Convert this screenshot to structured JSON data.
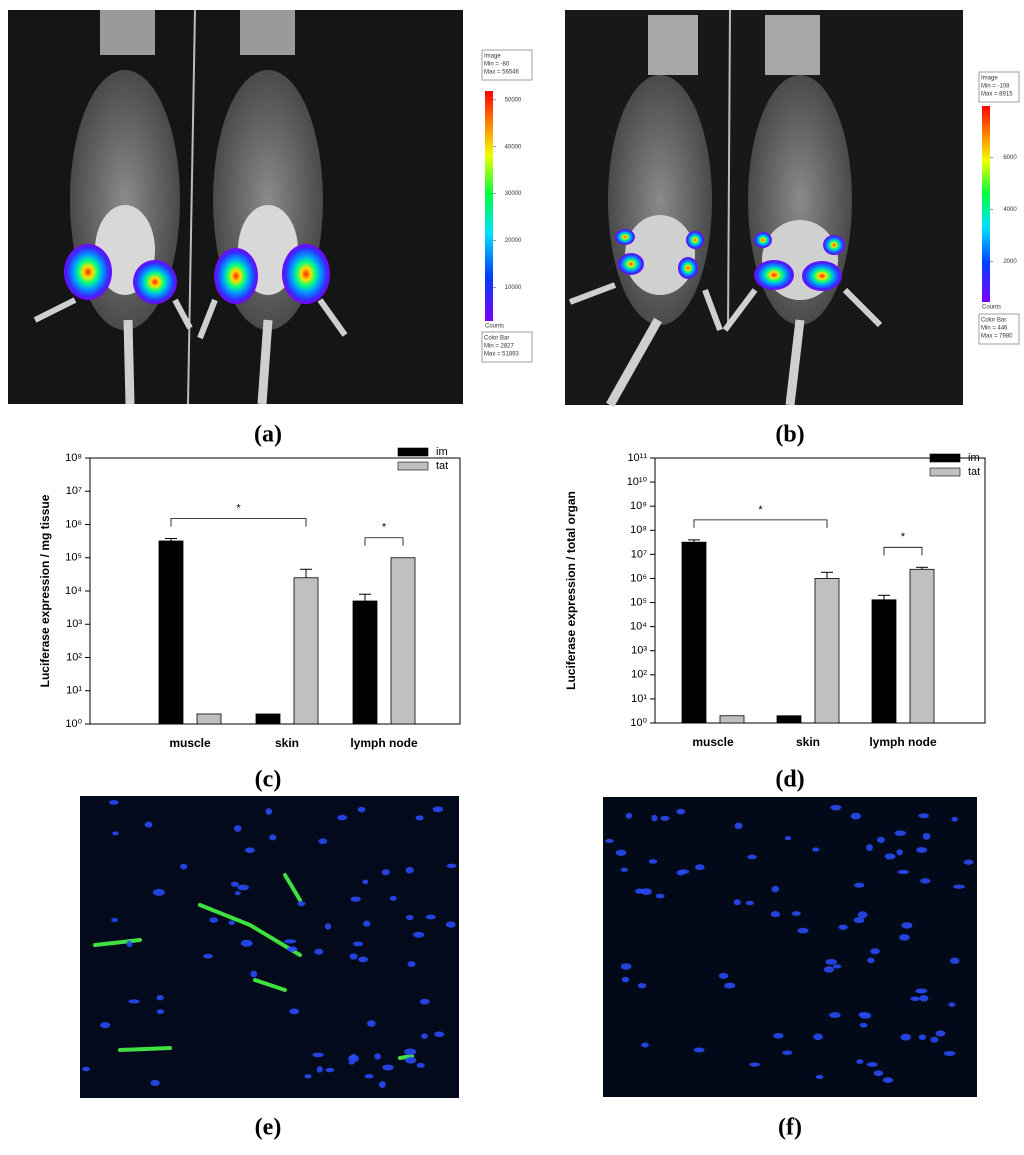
{
  "panel_labels": [
    "(a)",
    "(b)",
    "(c)",
    "(d)",
    "(e)",
    "(f)"
  ],
  "images": [
    {
      "header": [
        "Image",
        "Min = -80",
        "Max = 56546"
      ],
      "colorbar": {
        "lim": [
          2827,
          51893
        ],
        "ticks": [
          10000,
          20000,
          30000,
          40000,
          50000
        ],
        "unit": "Counts"
      },
      "footer": [
        "Color Bar",
        "Min = 2827",
        "Max = 51893"
      ]
    },
    {
      "header": [
        "Image",
        "Min = -108",
        "Max = 8915"
      ],
      "colorbar": {
        "lim": [
          446,
          7980
        ],
        "ticks": [
          2000,
          4000,
          6000
        ],
        "unit": "Counts"
      },
      "footer": [
        "Color Bar",
        "Min = 446",
        "Max = 7980"
      ]
    }
  ],
  "chart_data": [
    {
      "type": "bar",
      "y_label": "Luciferase expression / mg tissue",
      "categories": [
        "muscle",
        "skin",
        "lymph node"
      ],
      "series": [
        {
          "name": "im",
          "color": "#000000",
          "values": [
            320000,
            2,
            5000
          ],
          "errors": [
            60000,
            null,
            3000
          ]
        },
        {
          "name": "tat",
          "color": "#c0c0c0",
          "values": [
            2,
            25000,
            100000
          ],
          "errors": [
            null,
            20000,
            null
          ]
        }
      ],
      "log_scale": true,
      "ylim": [
        1,
        100000000
      ],
      "yticks": [
        {
          "value": 1,
          "label": "10⁰"
        },
        {
          "value": 10,
          "label": "10¹"
        },
        {
          "value": 100,
          "label": "10²"
        },
        {
          "value": 1000,
          "label": "10³"
        },
        {
          "value": 10000,
          "label": "10⁴"
        },
        {
          "value": 100000,
          "label": "10⁵"
        },
        {
          "value": 1000000,
          "label": "10⁶"
        },
        {
          "value": 10000000,
          "label": "10⁷"
        },
        {
          "value": 100000000,
          "label": "10⁸"
        }
      ],
      "legend": "upper right",
      "annotations": [
        "*",
        "*"
      ]
    },
    {
      "type": "bar",
      "y_label": "Luciferase expression / total organ",
      "categories": [
        "muscle",
        "skin",
        "lymph node"
      ],
      "series": [
        {
          "name": "im",
          "color": "#000000",
          "values": [
            32000000,
            2,
            130000
          ],
          "errors": [
            8000000,
            null,
            70000
          ]
        },
        {
          "name": "tat",
          "color": "#c0c0c0",
          "values": [
            2,
            1000000,
            2400000
          ],
          "errors": [
            null,
            800000,
            500000
          ]
        }
      ],
      "log_scale": true,
      "ylim": [
        1,
        100000000000
      ],
      "yticks": [
        {
          "value": 1,
          "label": "10⁰"
        },
        {
          "value": 10,
          "label": "10¹"
        },
        {
          "value": 100,
          "label": "10²"
        },
        {
          "value": 1000,
          "label": "10³"
        },
        {
          "value": 10000,
          "label": "10⁴"
        },
        {
          "value": 100000,
          "label": "10⁵"
        },
        {
          "value": 1000000,
          "label": "10⁶"
        },
        {
          "value": 10000000,
          "label": "10⁷"
        },
        {
          "value": 100000000,
          "label": "10⁸"
        },
        {
          "value": 1000000000,
          "label": "10⁹"
        },
        {
          "value": 10000000000,
          "label": "10¹⁰"
        },
        {
          "value": 100000000000,
          "label": "10¹¹"
        }
      ],
      "legend": "upper right",
      "annotations": [
        "*",
        "*"
      ]
    }
  ]
}
